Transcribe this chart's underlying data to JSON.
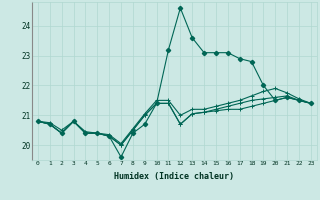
{
  "xlabel": "Humidex (Indice chaleur)",
  "bg_color": "#cce8e4",
  "grid_color": "#b0d8d0",
  "line_color": "#006655",
  "xlim": [
    -0.5,
    23.5
  ],
  "ylim": [
    19.5,
    24.8
  ],
  "yticks": [
    20,
    21,
    22,
    23,
    24
  ],
  "xticks": [
    0,
    1,
    2,
    3,
    4,
    5,
    6,
    7,
    8,
    9,
    10,
    11,
    12,
    13,
    14,
    15,
    16,
    17,
    18,
    19,
    20,
    21,
    22,
    23
  ],
  "series": {
    "line_peak": [
      20.8,
      20.7,
      20.4,
      20.8,
      20.4,
      20.4,
      20.3,
      19.6,
      20.4,
      20.7,
      21.4,
      23.2,
      24.6,
      23.6,
      23.1,
      23.1,
      23.1,
      22.9,
      22.8,
      22.0,
      21.5,
      21.6,
      21.5,
      21.4
    ],
    "line_avg1": [
      20.8,
      20.7,
      20.4,
      20.8,
      20.4,
      20.4,
      20.3,
      20.0,
      20.5,
      21.0,
      21.4,
      21.4,
      20.7,
      21.05,
      21.1,
      21.15,
      21.2,
      21.2,
      21.3,
      21.4,
      21.5,
      21.6,
      21.5,
      21.4
    ],
    "line_avg2": [
      20.8,
      20.7,
      20.4,
      20.8,
      20.4,
      20.4,
      20.3,
      20.0,
      20.5,
      21.0,
      21.4,
      21.4,
      20.7,
      21.05,
      21.1,
      21.2,
      21.3,
      21.4,
      21.5,
      21.55,
      21.6,
      21.65,
      21.5,
      21.4
    ],
    "line_trend": [
      20.8,
      20.75,
      20.5,
      20.8,
      20.45,
      20.4,
      20.35,
      20.05,
      20.55,
      21.05,
      21.5,
      21.5,
      21.0,
      21.2,
      21.2,
      21.3,
      21.4,
      21.5,
      21.65,
      21.8,
      21.9,
      21.75,
      21.55,
      21.4
    ]
  }
}
